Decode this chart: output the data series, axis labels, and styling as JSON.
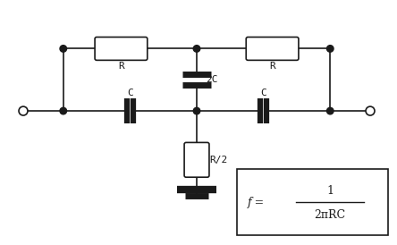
{
  "bg_color": "#ffffff",
  "line_color": "#1a1a1a",
  "component_fill": "#ffffff",
  "fig_width": 4.44,
  "fig_height": 2.74,
  "dpi": 100,
  "label_R1": "R",
  "label_R2": "R",
  "label_R3": "R/2",
  "label_2C": "2C",
  "label_C1": "C",
  "label_C2": "C",
  "xlim": [
    0,
    44.4
  ],
  "ylim": [
    0,
    27.4
  ]
}
